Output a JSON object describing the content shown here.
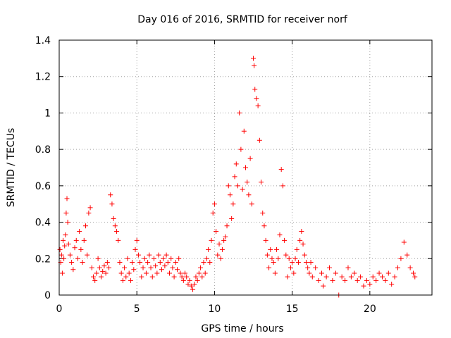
{
  "chart_data": {
    "type": "scatter",
    "title": "Day 016 of 2016, SRMTID for receiver norf",
    "xlabel": "GPS time / hours",
    "ylabel": "SRMTID / TECUs",
    "xlim": [
      0,
      24
    ],
    "ylim": [
      0,
      1.4
    ],
    "xticks": [
      0,
      5,
      10,
      15,
      20
    ],
    "xtick_labels": [
      "0",
      "5",
      "10",
      "15",
      "20"
    ],
    "yticks": [
      0,
      0.2,
      0.4,
      0.6,
      0.8,
      1,
      1.2,
      1.4
    ],
    "ytick_labels": [
      "0",
      "0.2",
      "0.4",
      "0.6",
      "0.8",
      "1",
      "1.2",
      "1.4"
    ],
    "grid": true,
    "marker": "+",
    "color": "#ff0000",
    "series": [
      {
        "name": "SRMTID",
        "points": [
          [
            0.05,
            0.25
          ],
          [
            0.1,
            0.18
          ],
          [
            0.15,
            0.22
          ],
          [
            0.2,
            0.12
          ],
          [
            0.25,
            0.3
          ],
          [
            0.3,
            0.2
          ],
          [
            0.35,
            0.27
          ],
          [
            0.4,
            0.33
          ],
          [
            0.45,
            0.45
          ],
          [
            0.5,
            0.53
          ],
          [
            0.55,
            0.4
          ],
          [
            0.6,
            0.28
          ],
          [
            0.7,
            0.22
          ],
          [
            0.8,
            0.18
          ],
          [
            0.9,
            0.14
          ],
          [
            1.0,
            0.26
          ],
          [
            1.1,
            0.3
          ],
          [
            1.2,
            0.2
          ],
          [
            1.3,
            0.35
          ],
          [
            1.4,
            0.25
          ],
          [
            1.5,
            0.18
          ],
          [
            1.6,
            0.3
          ],
          [
            1.7,
            0.38
          ],
          [
            1.8,
            0.22
          ],
          [
            1.9,
            0.45
          ],
          [
            2.0,
            0.48
          ],
          [
            2.1,
            0.15
          ],
          [
            2.2,
            0.1
          ],
          [
            2.3,
            0.08
          ],
          [
            2.4,
            0.12
          ],
          [
            2.5,
            0.2
          ],
          [
            2.6,
            0.15
          ],
          [
            2.7,
            0.1
          ],
          [
            2.8,
            0.13
          ],
          [
            2.9,
            0.16
          ],
          [
            3.0,
            0.12
          ],
          [
            3.1,
            0.18
          ],
          [
            3.2,
            0.15
          ],
          [
            3.3,
            0.55
          ],
          [
            3.4,
            0.5
          ],
          [
            3.5,
            0.42
          ],
          [
            3.6,
            0.38
          ],
          [
            3.7,
            0.35
          ],
          [
            3.8,
            0.3
          ],
          [
            3.9,
            0.18
          ],
          [
            4.0,
            0.12
          ],
          [
            4.1,
            0.08
          ],
          [
            4.2,
            0.15
          ],
          [
            4.3,
            0.1
          ],
          [
            4.4,
            0.2
          ],
          [
            4.5,
            0.12
          ],
          [
            4.6,
            0.08
          ],
          [
            4.7,
            0.18
          ],
          [
            4.8,
            0.14
          ],
          [
            4.9,
            0.25
          ],
          [
            5.0,
            0.3
          ],
          [
            5.1,
            0.22
          ],
          [
            5.2,
            0.18
          ],
          [
            5.3,
            0.1
          ],
          [
            5.4,
            0.15
          ],
          [
            5.5,
            0.2
          ],
          [
            5.6,
            0.12
          ],
          [
            5.7,
            0.18
          ],
          [
            5.8,
            0.22
          ],
          [
            5.9,
            0.15
          ],
          [
            6.0,
            0.1
          ],
          [
            6.1,
            0.2
          ],
          [
            6.2,
            0.16
          ],
          [
            6.3,
            0.12
          ],
          [
            6.4,
            0.22
          ],
          [
            6.5,
            0.18
          ],
          [
            6.6,
            0.14
          ],
          [
            6.7,
            0.2
          ],
          [
            6.8,
            0.16
          ],
          [
            6.9,
            0.22
          ],
          [
            7.0,
            0.18
          ],
          [
            7.1,
            0.12
          ],
          [
            7.2,
            0.2
          ],
          [
            7.3,
            0.15
          ],
          [
            7.4,
            0.1
          ],
          [
            7.5,
            0.18
          ],
          [
            7.6,
            0.14
          ],
          [
            7.7,
            0.2
          ],
          [
            7.8,
            0.12
          ],
          [
            7.9,
            0.1
          ],
          [
            8.0,
            0.08
          ],
          [
            8.1,
            0.12
          ],
          [
            8.2,
            0.1
          ],
          [
            8.3,
            0.06
          ],
          [
            8.4,
            0.08
          ],
          [
            8.5,
            0.05
          ],
          [
            8.6,
            0.03
          ],
          [
            8.7,
            0.06
          ],
          [
            8.8,
            0.1
          ],
          [
            8.9,
            0.08
          ],
          [
            9.0,
            0.12
          ],
          [
            9.1,
            0.15
          ],
          [
            9.2,
            0.1
          ],
          [
            9.3,
            0.18
          ],
          [
            9.4,
            0.12
          ],
          [
            9.5,
            0.2
          ],
          [
            9.6,
            0.25
          ],
          [
            9.7,
            0.18
          ],
          [
            9.8,
            0.3
          ],
          [
            9.9,
            0.45
          ],
          [
            10.0,
            0.5
          ],
          [
            10.1,
            0.35
          ],
          [
            10.2,
            0.22
          ],
          [
            10.3,
            0.28
          ],
          [
            10.4,
            0.2
          ],
          [
            10.5,
            0.25
          ],
          [
            10.6,
            0.3
          ],
          [
            10.7,
            0.32
          ],
          [
            10.8,
            0.38
          ],
          [
            10.9,
            0.6
          ],
          [
            11.0,
            0.55
          ],
          [
            11.1,
            0.42
          ],
          [
            11.2,
            0.5
          ],
          [
            11.3,
            0.65
          ],
          [
            11.4,
            0.72
          ],
          [
            11.5,
            0.6
          ],
          [
            11.6,
            1.0
          ],
          [
            11.7,
            0.8
          ],
          [
            11.8,
            0.58
          ],
          [
            11.9,
            0.9
          ],
          [
            12.0,
            0.7
          ],
          [
            12.1,
            0.62
          ],
          [
            12.2,
            0.55
          ],
          [
            12.3,
            0.75
          ],
          [
            12.4,
            0.5
          ],
          [
            12.5,
            1.3
          ],
          [
            12.55,
            1.26
          ],
          [
            12.6,
            1.13
          ],
          [
            12.7,
            1.08
          ],
          [
            12.8,
            1.04
          ],
          [
            12.9,
            0.85
          ],
          [
            13.0,
            0.62
          ],
          [
            13.1,
            0.45
          ],
          [
            13.2,
            0.38
          ],
          [
            13.3,
            0.3
          ],
          [
            13.4,
            0.22
          ],
          [
            13.5,
            0.15
          ],
          [
            13.6,
            0.25
          ],
          [
            13.7,
            0.2
          ],
          [
            13.8,
            0.18
          ],
          [
            13.9,
            0.12
          ],
          [
            14.0,
            0.25
          ],
          [
            14.1,
            0.2
          ],
          [
            14.2,
            0.33
          ],
          [
            14.3,
            0.69
          ],
          [
            14.4,
            0.6
          ],
          [
            14.5,
            0.3
          ],
          [
            14.6,
            0.22
          ],
          [
            14.7,
            0.1
          ],
          [
            14.8,
            0.2
          ],
          [
            14.9,
            0.15
          ],
          [
            15.0,
            0.18
          ],
          [
            15.1,
            0.12
          ],
          [
            15.2,
            0.2
          ],
          [
            15.3,
            0.25
          ],
          [
            15.4,
            0.18
          ],
          [
            15.5,
            0.3
          ],
          [
            15.6,
            0.35
          ],
          [
            15.7,
            0.28
          ],
          [
            15.8,
            0.22
          ],
          [
            15.9,
            0.18
          ],
          [
            16.0,
            0.15
          ],
          [
            16.1,
            0.12
          ],
          [
            16.2,
            0.18
          ],
          [
            16.3,
            0.1
          ],
          [
            16.5,
            0.15
          ],
          [
            16.7,
            0.08
          ],
          [
            16.9,
            0.12
          ],
          [
            17.0,
            0.05
          ],
          [
            17.2,
            0.1
          ],
          [
            17.4,
            0.15
          ],
          [
            17.6,
            0.08
          ],
          [
            17.8,
            0.12
          ],
          [
            18.0,
            0.0
          ],
          [
            18.2,
            0.1
          ],
          [
            18.4,
            0.08
          ],
          [
            18.6,
            0.15
          ],
          [
            18.8,
            0.1
          ],
          [
            19.0,
            0.12
          ],
          [
            19.2,
            0.08
          ],
          [
            19.4,
            0.1
          ],
          [
            19.6,
            0.05
          ],
          [
            19.8,
            0.08
          ],
          [
            20.0,
            0.06
          ],
          [
            20.2,
            0.1
          ],
          [
            20.4,
            0.08
          ],
          [
            20.6,
            0.12
          ],
          [
            20.8,
            0.1
          ],
          [
            21.0,
            0.08
          ],
          [
            21.2,
            0.12
          ],
          [
            21.4,
            0.06
          ],
          [
            21.6,
            0.1
          ],
          [
            21.8,
            0.15
          ],
          [
            22.0,
            0.2
          ],
          [
            22.2,
            0.29
          ],
          [
            22.4,
            0.22
          ],
          [
            22.6,
            0.15
          ],
          [
            22.8,
            0.12
          ],
          [
            22.9,
            0.1
          ]
        ]
      }
    ]
  }
}
